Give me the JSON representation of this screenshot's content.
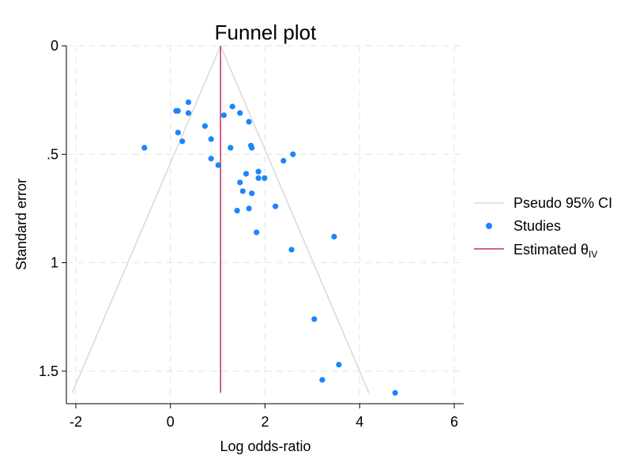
{
  "chart_data": {
    "type": "scatter",
    "title": "Funnel plot",
    "xlabel": "Log odds-ratio",
    "ylabel": "Standard error",
    "xlim": [
      -2.2,
      6.2
    ],
    "ylim": [
      0,
      1.65
    ],
    "y_reversed": true,
    "grid": true,
    "legend_position": "right",
    "x_ticks": [
      -2,
      0,
      2,
      4,
      6
    ],
    "x_tick_labels": [
      "-2",
      "0",
      "2",
      "4",
      "6"
    ],
    "y_ticks": [
      0,
      0.5,
      1,
      1.5
    ],
    "y_tick_labels": [
      "0",
      ".5",
      "1",
      "1.5"
    ],
    "estimate": 1.06,
    "ci_se_max": 1.6,
    "colors": {
      "studies": "#1a85ff",
      "estimate": "#c72e6b",
      "ci": "#d9d9d9",
      "grid": "#e3e3e3",
      "axis": "#000000"
    },
    "series": [
      {
        "name": "Pseudo 95% CI",
        "kind": "ci"
      },
      {
        "name": "Studies",
        "kind": "points",
        "points": [
          [
            -0.55,
            0.47
          ],
          [
            0.12,
            0.3
          ],
          [
            0.16,
            0.3
          ],
          [
            0.38,
            0.26
          ],
          [
            0.38,
            0.31
          ],
          [
            0.16,
            0.4
          ],
          [
            0.25,
            0.44
          ],
          [
            0.73,
            0.37
          ],
          [
            0.86,
            0.43
          ],
          [
            0.86,
            0.52
          ],
          [
            1.01,
            0.55
          ],
          [
            1.13,
            0.32
          ],
          [
            1.27,
            0.47
          ],
          [
            1.31,
            0.28
          ],
          [
            1.47,
            0.31
          ],
          [
            1.66,
            0.35
          ],
          [
            1.7,
            0.46
          ],
          [
            1.72,
            0.47
          ],
          [
            1.6,
            0.59
          ],
          [
            1.47,
            0.63
          ],
          [
            1.53,
            0.67
          ],
          [
            1.86,
            0.58
          ],
          [
            1.86,
            0.61
          ],
          [
            1.99,
            0.61
          ],
          [
            1.72,
            0.68
          ],
          [
            1.66,
            0.75
          ],
          [
            1.41,
            0.76
          ],
          [
            2.22,
            0.74
          ],
          [
            2.39,
            0.53
          ],
          [
            2.59,
            0.5
          ],
          [
            1.82,
            0.86
          ],
          [
            2.56,
            0.94
          ],
          [
            3.46,
            0.88
          ],
          [
            3.04,
            1.26
          ],
          [
            3.56,
            1.47
          ],
          [
            3.21,
            1.54
          ],
          [
            4.75,
            1.6
          ]
        ]
      },
      {
        "name": "Estimated θ",
        "subscript": "IV",
        "kind": "line"
      }
    ]
  }
}
